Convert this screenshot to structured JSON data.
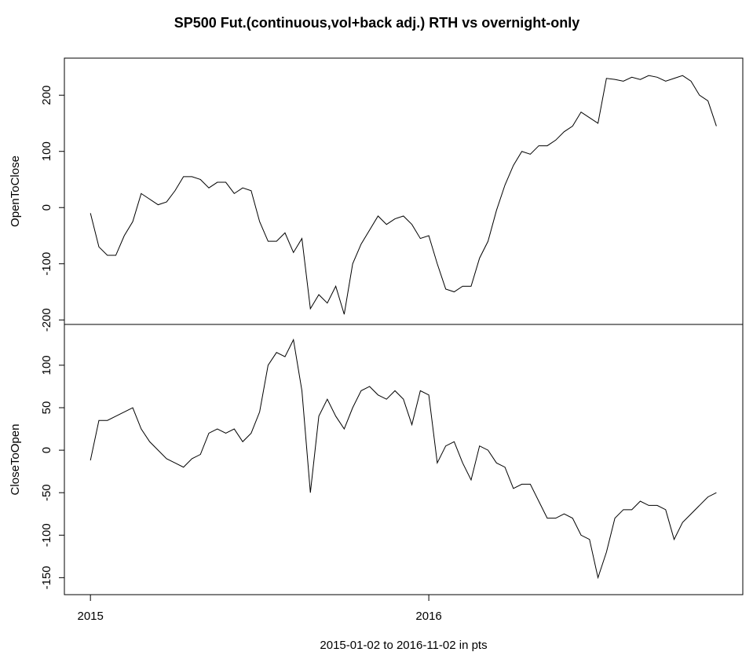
{
  "chart_data": [
    {
      "type": "line",
      "title": "SP500 Fut.(continuous,vol+back adj.) RTH vs overnight-only",
      "ylabel": "OpenToClose",
      "xlim": [
        2014.923,
        2016.928
      ],
      "ylim": [
        -208,
        266
      ],
      "yticks": [
        -200,
        -100,
        0,
        100,
        200
      ],
      "color": "#000000",
      "x": [
        2015,
        2015.025,
        2015.05,
        2015.075,
        2015.1,
        2015.125,
        2015.15,
        2015.175,
        2015.2,
        2015.225,
        2015.25,
        2015.275,
        2015.3,
        2015.325,
        2015.35,
        2015.375,
        2015.4,
        2015.425,
        2015.45,
        2015.475,
        2015.5,
        2015.525,
        2015.55,
        2015.575,
        2015.6,
        2015.625,
        2015.65,
        2015.675,
        2015.7,
        2015.725,
        2015.75,
        2015.775,
        2015.8,
        2015.825,
        2015.85,
        2015.875,
        2015.9,
        2015.925,
        2015.95,
        2015.975,
        2016,
        2016.025,
        2016.05,
        2016.075,
        2016.1,
        2016.125,
        2016.15,
        2016.175,
        2016.2,
        2016.225,
        2016.25,
        2016.275,
        2016.3,
        2016.325,
        2016.35,
        2016.375,
        2016.4,
        2016.425,
        2016.45,
        2016.475,
        2016.5,
        2016.525,
        2016.55,
        2016.575,
        2016.6,
        2016.625,
        2016.65,
        2016.675,
        2016.7,
        2016.725,
        2016.75,
        2016.775,
        2016.8,
        2016.825,
        2016.85
      ],
      "values": [
        -10,
        -70,
        -85,
        -85,
        -50,
        -25,
        25,
        15,
        5,
        10,
        30,
        55,
        55,
        50,
        35,
        45,
        45,
        25,
        35,
        30,
        -25,
        -60,
        -60,
        -45,
        -80,
        -55,
        -180,
        -155,
        -170,
        -140,
        -190,
        -100,
        -65,
        -40,
        -15,
        -30,
        -20,
        -15,
        -30,
        -55,
        -50,
        -100,
        -145,
        -150,
        -140,
        -140,
        -90,
        -60,
        -5,
        40,
        75,
        100,
        95,
        110,
        110,
        120,
        135,
        145,
        170,
        160,
        150,
        230,
        228,
        225,
        232,
        228,
        235,
        232,
        225,
        230,
        235,
        225,
        200,
        190,
        145
      ]
    },
    {
      "type": "line",
      "ylabel": "CloseToOpen",
      "xlabel": "2015-01-02 to 2016-11-02   in pts",
      "xlim": [
        2014.923,
        2016.928
      ],
      "xticks": [
        2015,
        2016
      ],
      "ylim": [
        -170,
        148
      ],
      "yticks": [
        -150,
        -100,
        -50,
        0,
        50,
        100
      ],
      "color": "#000000",
      "x": [
        2015,
        2015.025,
        2015.05,
        2015.075,
        2015.1,
        2015.125,
        2015.15,
        2015.175,
        2015.2,
        2015.225,
        2015.25,
        2015.275,
        2015.3,
        2015.325,
        2015.35,
        2015.375,
        2015.4,
        2015.425,
        2015.45,
        2015.475,
        2015.5,
        2015.525,
        2015.55,
        2015.575,
        2015.6,
        2015.625,
        2015.65,
        2015.675,
        2015.7,
        2015.725,
        2015.75,
        2015.775,
        2015.8,
        2015.825,
        2015.85,
        2015.875,
        2015.9,
        2015.925,
        2015.95,
        2015.975,
        2016,
        2016.025,
        2016.05,
        2016.075,
        2016.1,
        2016.125,
        2016.15,
        2016.175,
        2016.2,
        2016.225,
        2016.25,
        2016.275,
        2016.3,
        2016.325,
        2016.35,
        2016.375,
        2016.4,
        2016.425,
        2016.45,
        2016.475,
        2016.5,
        2016.525,
        2016.55,
        2016.575,
        2016.6,
        2016.625,
        2016.65,
        2016.675,
        2016.7,
        2016.725,
        2016.75,
        2016.775,
        2016.8,
        2016.825,
        2016.85
      ],
      "values": [
        -12,
        35,
        35,
        40,
        45,
        50,
        25,
        10,
        0,
        -10,
        -15,
        -20,
        -10,
        -5,
        20,
        25,
        20,
        25,
        10,
        20,
        45,
        100,
        115,
        110,
        130,
        70,
        -50,
        40,
        60,
        40,
        25,
        50,
        70,
        75,
        65,
        60,
        70,
        60,
        30,
        70,
        65,
        -15,
        5,
        10,
        -15,
        -35,
        5,
        0,
        -15,
        -20,
        -45,
        -40,
        -40,
        -60,
        -80,
        -80,
        -75,
        -80,
        -100,
        -105,
        -150,
        -120,
        -80,
        -70,
        -70,
        -60,
        -65,
        -65,
        -70,
        -105,
        -85,
        -75,
        -65,
        -55,
        -50
      ]
    }
  ]
}
